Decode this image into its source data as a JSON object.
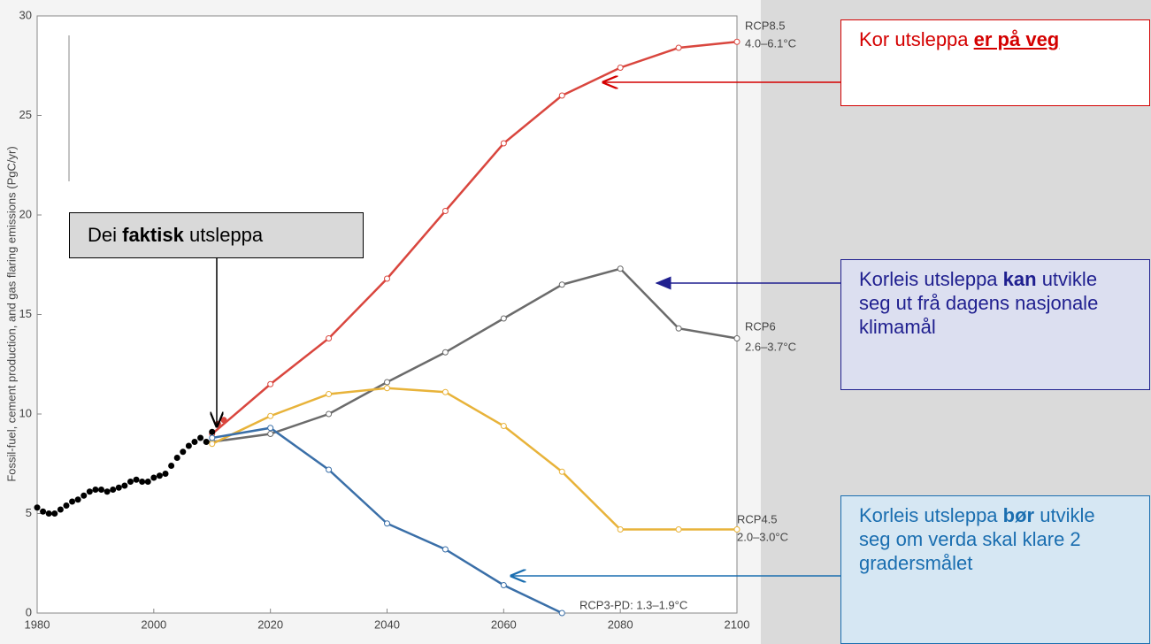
{
  "chart_data": {
    "type": "line",
    "ylabel": "Fossil-fuel, cement production, and gas flaring emissions (PgC/yr)",
    "xlim": [
      1980,
      2100
    ],
    "xticks": [
      1980,
      2000,
      2020,
      2040,
      2060,
      2080,
      2100
    ],
    "ylim": [
      0,
      30
    ],
    "yticks": [
      0,
      5,
      10,
      15,
      20,
      25,
      30
    ],
    "series": [
      {
        "name": "RCP8.5",
        "range": "4.0–6.1°C",
        "color": "#d9463e",
        "x": [
          2010,
          2020,
          2030,
          2040,
          2050,
          2060,
          2070,
          2080,
          2090,
          2100
        ],
        "values": [
          9.0,
          11.5,
          13.8,
          16.8,
          20.2,
          23.6,
          26.0,
          27.4,
          28.4,
          28.7
        ]
      },
      {
        "name": "RCP6",
        "range": "2.6–3.7°C",
        "color": "#6b6b6b",
        "x": [
          2010,
          2020,
          2030,
          2040,
          2050,
          2060,
          2070,
          2080,
          2090,
          2100
        ],
        "values": [
          8.6,
          9.0,
          10.0,
          11.6,
          13.1,
          14.8,
          16.5,
          17.3,
          14.3,
          13.8
        ]
      },
      {
        "name": "RCP4.5",
        "range": "2.0–3.0°C",
        "color": "#e8b33a",
        "x": [
          2010,
          2020,
          2030,
          2040,
          2050,
          2060,
          2070,
          2080,
          2090,
          2100
        ],
        "values": [
          8.5,
          9.9,
          11.0,
          11.3,
          11.1,
          9.4,
          7.1,
          4.2,
          4.2,
          4.2
        ]
      },
      {
        "name": "RCP3-PD: 1.3–1.9°C",
        "color": "#3a6fa8",
        "x": [
          2010,
          2020,
          2030,
          2040,
          2050,
          2060,
          2070
        ],
        "values": [
          8.8,
          9.3,
          7.2,
          4.5,
          3.2,
          1.4,
          0.0
        ]
      },
      {
        "color": "#000000",
        "x": [
          1980,
          1981,
          1982,
          1983,
          1984,
          1985,
          1986,
          1987,
          1988,
          1989,
          1990,
          1991,
          1992,
          1993,
          1994,
          1995,
          1996,
          1997,
          1998,
          1999,
          2000,
          2001,
          2002,
          2003,
          2004,
          2005,
          2006,
          2007,
          2008,
          2009,
          2010
        ],
        "values": [
          5.3,
          5.1,
          5.0,
          5.0,
          5.2,
          5.4,
          5.6,
          5.7,
          5.9,
          6.1,
          6.2,
          6.2,
          6.1,
          6.2,
          6.3,
          6.4,
          6.6,
          6.7,
          6.6,
          6.6,
          6.8,
          6.9,
          7.0,
          7.4,
          7.8,
          8.1,
          8.4,
          8.6,
          8.8,
          8.6,
          9.1
        ]
      },
      {
        "color": "#d9463e",
        "x": [
          2011,
          2012
        ],
        "values": [
          9.5,
          9.7
        ]
      }
    ],
    "annotations": [
      {
        "parts": [
          {
            "text": "Kor utsleppa "
          },
          {
            "text": "er på veg",
            "bold": true,
            "underline": true
          }
        ]
      },
      {
        "parts": [
          {
            "text": "Dei "
          },
          {
            "text": "faktisk",
            "bold": true
          },
          {
            "text": " utsleppa"
          }
        ]
      },
      {
        "parts": [
          {
            "text": "Korleis utsleppa "
          },
          {
            "text": "kan",
            "bold": true
          },
          {
            "text": " utvikle seg ut frå dagens nasjonale klimamål"
          }
        ]
      },
      {
        "parts": [
          {
            "text": "Korleis utsleppa "
          },
          {
            "text": "bør",
            "bold": true
          },
          {
            "text": " utvikle seg om verda skal klare 2 gradersmålet"
          }
        ]
      }
    ]
  }
}
